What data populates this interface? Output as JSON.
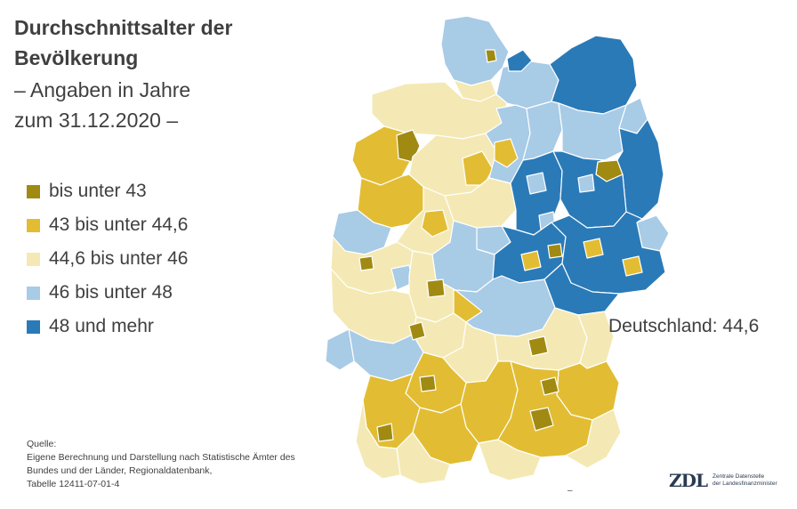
{
  "title": "Durchschnittsalter der Bevölkerung",
  "subtitle_line1": "– Angaben in Jahre",
  "subtitle_line2": "zum 31.12.2020 –",
  "legend": [
    {
      "label": "bis unter 43",
      "color": "#a08a12"
    },
    {
      "label": "43 bis unter 44,6",
      "color": "#e2bd33"
    },
    {
      "label": "44,6 bis unter 46",
      "color": "#f4e9b4"
    },
    {
      "label": "46 bis unter 48",
      "color": "#a8cbe6"
    },
    {
      "label": "48 und mehr",
      "color": "#2a7ab8"
    }
  ],
  "national_label": "Deutschland: 44,6",
  "source": {
    "heading": "Quelle:",
    "lines": [
      "Eigene Berechnung und Darstellung nach Statistische Ämter des",
      "Bundes und der Länder, Regionaldatenbank,",
      "Tabelle 12411-07-01-4"
    ]
  },
  "logo": {
    "mark": "ZDL",
    "line1": "Zentrale Datenstelle",
    "line2": "der Landesfinanzminister"
  },
  "map_colors": {
    "border": "#ffffff",
    "low": "#a08a12",
    "mid_low": "#e2bd33",
    "mid": "#f4e9b4",
    "mid_high": "#a8cbe6",
    "high": "#2a7ab8"
  }
}
